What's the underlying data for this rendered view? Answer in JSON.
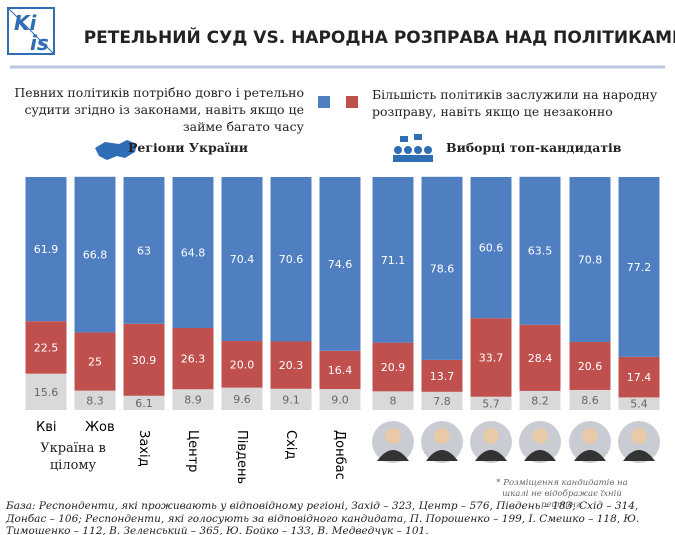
{
  "logo": [
    "Ki",
    "is"
  ],
  "groups": [
    "Регіони України",
    "Виборці топ-кандидатів"
  ],
  "ukraine_label": "Україна в цілому",
  "note": "* Розміщення кандидатів на шкалі не відображає їхній рейтинг.",
  "base": "База: Респонденти, які проживають у відповідному регіоні, Захід – 323, Центр – 576, Південь – 183, Схід – 314, Донбас – 106; Респонденти, які голосують за відповідного кандидата, П. Порошенко – 199, І. Смешко – 118, Ю. Тимошенко – 112, В. Зеленський – 365, Ю. Бойко – 133, В. Медведчук – 101.",
  "chart_data": {
    "type": "stacked_bar",
    "title": "РЕТЕЛЬНИЙ СУД VS. НАРОДНА РОЗПРАВА НАД ПОЛІТИКАМИ",
    "categories": [
      "Кві",
      "Жов",
      "Захід",
      "Центр",
      "Південь",
      "Схід",
      "Донбас",
      null,
      null,
      null,
      null,
      null,
      null
    ],
    "ylim": [
      0,
      100
    ],
    "series": [
      {
        "color": "#d9d9d9",
        "values": [
          15.6,
          8.3,
          6.1,
          8.9,
          9.6,
          9.1,
          9.0,
          8,
          7.8,
          5.7,
          8.2,
          8.6,
          5.4
        ],
        "value_labels": [
          "15.6",
          "8.3",
          "6.1",
          "8.9",
          "9.6",
          "9.1",
          "9.0",
          "8",
          "7.8",
          "5.7",
          "8.2",
          "8.6",
          "5.4"
        ]
      },
      {
        "name": "Певних політиків потрібно довго і ретельно судити згідно із законами, навіть якщо це займе багато часу",
        "color": "#4f7fc1",
        "values": [
          61.9,
          66.8,
          63,
          64.8,
          70.4,
          70.6,
          74.6,
          71.1,
          78.6,
          60.6,
          63.5,
          70.8,
          77.2
        ],
        "value_labels": [
          "61.9",
          "66.8",
          "63",
          "64.8",
          "70.4",
          "70.6",
          "74.6",
          "71.1",
          "78.6",
          "60.6",
          "63.5",
          "70.8",
          "77.2"
        ]
      },
      {
        "name": "Більшість політиків заслужили на народну розправу, навіть якщо це незаконно",
        "color": "#c0504d",
        "values": [
          22.5,
          25,
          30.9,
          26.3,
          20.0,
          20.3,
          16.4,
          20.9,
          13.7,
          33.7,
          28.4,
          20.6,
          17.4
        ],
        "value_labels": [
          "22.5",
          "25",
          "30.9",
          "26.3",
          "20.0",
          "20.3",
          "16.4",
          "20.9",
          "13.7",
          "33.7",
          "28.4",
          "20.6",
          "17.4"
        ]
      }
    ],
    "stack_order": [
      0,
      2,
      1
    ]
  }
}
